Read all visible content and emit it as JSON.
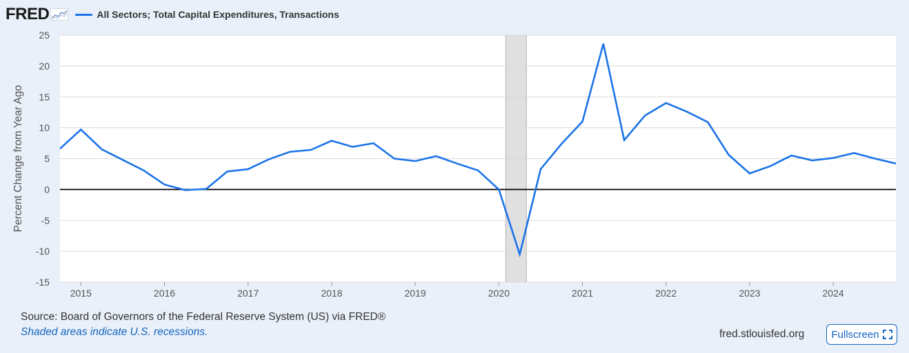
{
  "brand": {
    "logo_text": "FRED",
    "logo_icon": "chart-line-icon"
  },
  "legend": {
    "label": "All Sectors; Total Capital Expenditures, Transactions"
  },
  "colors": {
    "series": "#1a73e8",
    "recession": "#e0e0e0",
    "background": "#e9f0f9",
    "link": "#1565c0"
  },
  "footer": {
    "source": "Source: Board of Governors of the Federal Reserve System (US) via FRED®",
    "note": "Shaded areas indicate U.S. recessions.",
    "site": "fred.stlouisfed.org",
    "fullscreen_label": "Fullscreen",
    "fullscreen_icon": "expand-icon"
  },
  "chart_data": {
    "type": "line",
    "title": "All Sectors; Total Capital Expenditures, Transactions",
    "ylabel": "Percent Change from Year Ago",
    "xlabel": "",
    "ylim": [
      -15,
      25
    ],
    "xlim": [
      "2014-10-01",
      "2024-10-01"
    ],
    "yticks": [
      25,
      20,
      15,
      10,
      5,
      0,
      -5,
      -10,
      -15
    ],
    "xticks": [
      "2015",
      "2016",
      "2017",
      "2018",
      "2019",
      "2020",
      "2021",
      "2022",
      "2023",
      "2024"
    ],
    "grid": true,
    "recessions": [
      {
        "start": "2020-02-01",
        "end": "2020-04-30"
      }
    ],
    "series": [
      {
        "name": "All Sectors; Total Capital Expenditures, Transactions",
        "points": [
          [
            "2014-10-01",
            6.6
          ],
          [
            "2015-01-01",
            9.7
          ],
          [
            "2015-04-01",
            6.5
          ],
          [
            "2015-07-01",
            4.8
          ],
          [
            "2015-10-01",
            3.1
          ],
          [
            "2016-01-01",
            0.8
          ],
          [
            "2016-04-01",
            -0.1
          ],
          [
            "2016-07-01",
            0.1
          ],
          [
            "2016-10-01",
            2.9
          ],
          [
            "2017-01-01",
            3.3
          ],
          [
            "2017-04-01",
            4.9
          ],
          [
            "2017-07-01",
            6.1
          ],
          [
            "2017-10-01",
            6.4
          ],
          [
            "2018-01-01",
            7.9
          ],
          [
            "2018-04-01",
            6.9
          ],
          [
            "2018-07-01",
            7.5
          ],
          [
            "2018-10-01",
            5.0
          ],
          [
            "2019-01-01",
            4.6
          ],
          [
            "2019-04-01",
            5.4
          ],
          [
            "2019-07-01",
            4.2
          ],
          [
            "2019-10-01",
            3.1
          ],
          [
            "2020-01-01",
            0.0
          ],
          [
            "2020-04-01",
            -10.5
          ],
          [
            "2020-07-01",
            3.3
          ],
          [
            "2020-10-01",
            7.4
          ],
          [
            "2021-01-01",
            11.0
          ],
          [
            "2021-04-01",
            23.6
          ],
          [
            "2021-07-01",
            8.0
          ],
          [
            "2021-10-01",
            12.0
          ],
          [
            "2022-01-01",
            14.0
          ],
          [
            "2022-04-01",
            12.6
          ],
          [
            "2022-07-01",
            10.9
          ],
          [
            "2022-10-01",
            5.6
          ],
          [
            "2023-01-01",
            2.6
          ],
          [
            "2023-04-01",
            3.8
          ],
          [
            "2023-07-01",
            5.5
          ],
          [
            "2023-10-01",
            4.7
          ],
          [
            "2024-01-01",
            5.1
          ],
          [
            "2024-04-01",
            5.9
          ],
          [
            "2024-07-01",
            5.0
          ],
          [
            "2024-10-01",
            4.2
          ]
        ]
      }
    ]
  }
}
